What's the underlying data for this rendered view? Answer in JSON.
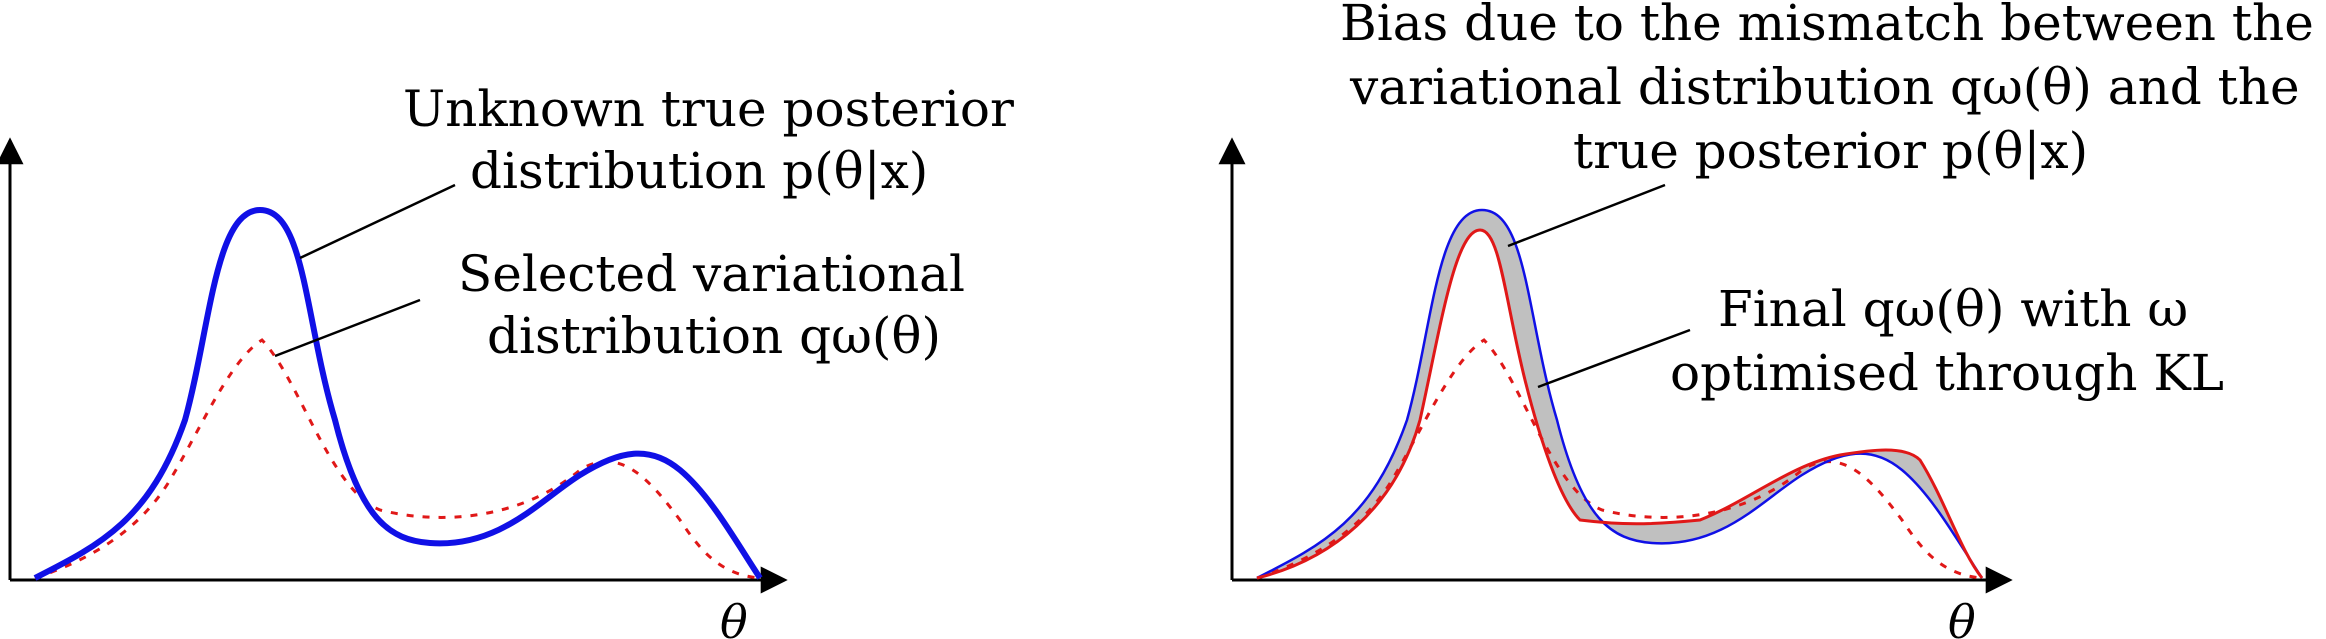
{
  "colors": {
    "posterior": "#1010e6",
    "variational": "#e01818",
    "bias_fill": "#c0c0c0",
    "axes": "#000000"
  },
  "left_panel": {
    "axis_symbol": "θ",
    "posterior_label": {
      "line1": "Unknown true posterior",
      "line2": "distribution p(θ|x)"
    },
    "variational_label": {
      "line1": "Selected variational",
      "line2": "distribution qω(θ)"
    }
  },
  "right_panel": {
    "axis_symbol": "θ",
    "bias_label": {
      "line1": "Bias due to the mismatch between the",
      "line2": "variational distribution qω(θ) and the",
      "line3": "true posterior p(θ|x)"
    },
    "final_label": {
      "line1": "Final qω(θ) with ω",
      "line2": "optimised through KL"
    }
  }
}
